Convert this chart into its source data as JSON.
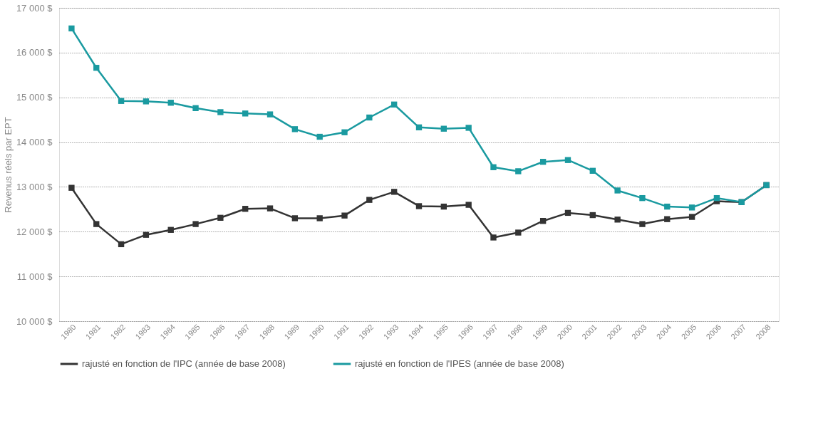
{
  "chart_data": {
    "type": "line",
    "ylabel": "Revenus réels par EPT",
    "categories": [
      "1980",
      "1981",
      "1982",
      "1983",
      "1984",
      "1985",
      "1986",
      "1987",
      "1988",
      "1989",
      "1990",
      "1991",
      "1992",
      "1993",
      "1994",
      "1995",
      "1996",
      "1997",
      "1998",
      "1999",
      "2000",
      "2001",
      "2002",
      "2003",
      "2004",
      "2005",
      "2006",
      "2007",
      "2008"
    ],
    "series": [
      {
        "name": "rajusté en fonction de l'IPC (année de base 2008)",
        "color": "#333333",
        "values": [
          12980,
          12170,
          11720,
          11930,
          12040,
          12170,
          12310,
          12510,
          12520,
          12300,
          12300,
          12360,
          12710,
          12890,
          12570,
          12560,
          12600,
          11870,
          11980,
          12240,
          12420,
          12370,
          12270,
          12170,
          12280,
          12330,
          12680,
          12660,
          13040
        ]
      },
      {
        "name": "rajusté en fonction de l'IPES (année de base 2008)",
        "color": "#1a9aa0",
        "values": [
          16540,
          15660,
          14920,
          14910,
          14880,
          14760,
          14670,
          14640,
          14620,
          14290,
          14120,
          14220,
          14550,
          14840,
          14330,
          14300,
          14320,
          13440,
          13350,
          13560,
          13600,
          13360,
          12920,
          12750,
          12560,
          12540,
          12750,
          12660,
          13040
        ]
      }
    ],
    "ylim": [
      10000,
      17000
    ],
    "yticks": [
      {
        "value": 10000,
        "label": "10 000 $"
      },
      {
        "value": 11000,
        "label": "11 000 $"
      },
      {
        "value": 12000,
        "label": "12 000 $"
      },
      {
        "value": 13000,
        "label": "13 000 $"
      },
      {
        "value": 14000,
        "label": "14 000 $"
      },
      {
        "value": 15000,
        "label": "15 000 $"
      },
      {
        "value": 16000,
        "label": "16 000 $"
      },
      {
        "value": 17000,
        "label": "17 000 $"
      }
    ],
    "grid": "y",
    "legend": "bottom",
    "marker": "square",
    "line_style": "solid"
  }
}
